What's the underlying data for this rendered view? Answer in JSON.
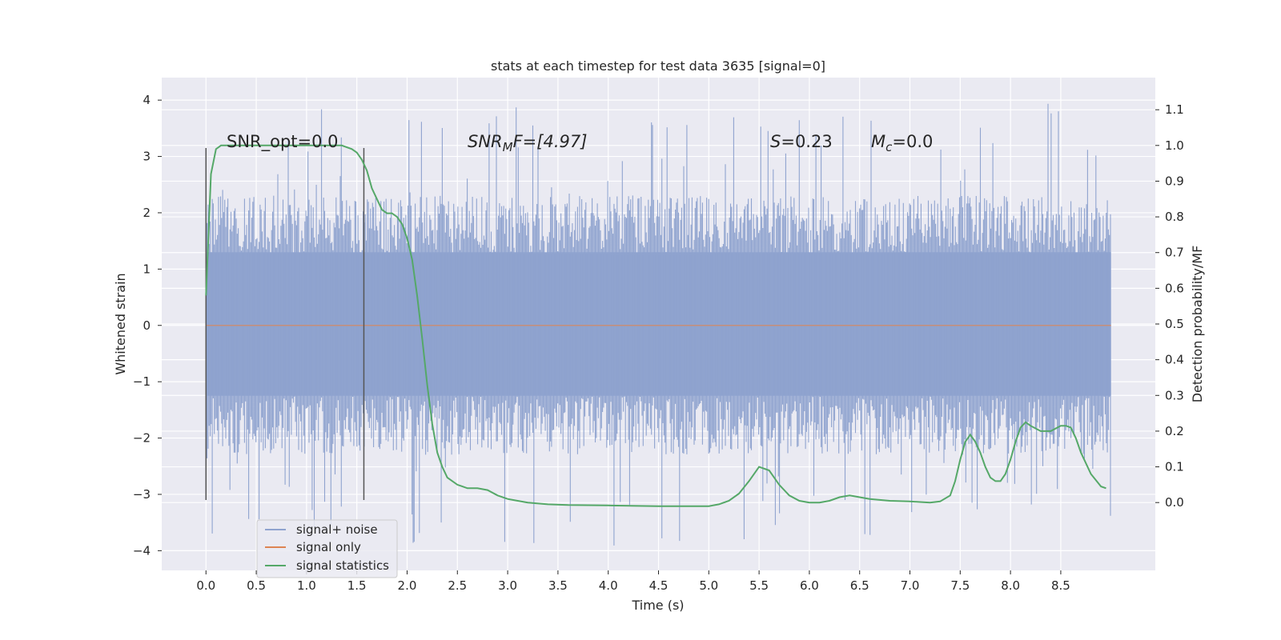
{
  "chart_data": {
    "type": "line",
    "title": "stats at each timestep for test data 3635 [signal=0]",
    "xlabel": "Time (s)",
    "ylabel": "Whitened strain",
    "y2label": "Detection probability/MF",
    "xlim": [
      -0.44,
      9.44
    ],
    "ylim": [
      -4.35,
      4.4
    ],
    "y2lim": [
      -0.19,
      1.19
    ],
    "x_ticks": [
      "0.0",
      "0.5",
      "1.0",
      "1.5",
      "2.0",
      "2.5",
      "3.0",
      "3.5",
      "4.0",
      "4.5",
      "5.0",
      "5.5",
      "6.0",
      "6.5",
      "7.0",
      "7.5",
      "8.0",
      "8.5"
    ],
    "x_tick_values": [
      0,
      0.5,
      1,
      1.5,
      2,
      2.5,
      3,
      3.5,
      4,
      4.5,
      5,
      5.5,
      6,
      6.5,
      7,
      7.5,
      8,
      8.5
    ],
    "y_ticks": [
      "−4",
      "−3",
      "−2",
      "−1",
      "0",
      "1",
      "2",
      "3",
      "4"
    ],
    "y_tick_values": [
      -4,
      -3,
      -2,
      -1,
      0,
      1,
      2,
      3,
      4
    ],
    "y2_ticks": [
      "0.0",
      "0.1",
      "0.2",
      "0.3",
      "0.4",
      "0.5",
      "0.6",
      "0.7",
      "0.8",
      "0.9",
      "1.0",
      "1.1"
    ],
    "y2_tick_values": [
      0,
      0.1,
      0.2,
      0.3,
      0.4,
      0.5,
      0.6,
      0.7,
      0.8,
      0.9,
      1.0,
      1.1
    ],
    "grid": true,
    "legend_position": "lower-left",
    "annotations": {
      "snr_opt": "SNR_opt=0.0",
      "snr_mf_prefix": "SNR",
      "snr_mf_sub": "M",
      "snr_mf_suffix": "F=[4.97]",
      "s_label": "S",
      "s_value": "=0.23",
      "mc_label": "M",
      "mc_sub": "c",
      "mc_value": "=0.0"
    },
    "vlines": [
      {
        "x": 0.0,
        "ymin": -3.1,
        "ymax": 3.15
      },
      {
        "x": 1.57,
        "ymin": -3.1,
        "ymax": 3.15
      }
    ],
    "series": [
      {
        "name": "signal+ noise",
        "color": "#8fa3cf",
        "axis": "left",
        "x_range": [
          0.0,
          9.0
        ],
        "band_core": [
          -1.25,
          1.3
        ],
        "band_typical": [
          -2.3,
          2.3
        ],
        "min": -3.95,
        "max": 4.02
      },
      {
        "name": "signal only",
        "color": "#dd8452",
        "axis": "left",
        "x": [
          0.0,
          9.0
        ],
        "y": [
          0.0,
          0.0
        ]
      },
      {
        "name": "signal statistics",
        "color": "#55a868",
        "axis": "right",
        "x": [
          0.0,
          0.05,
          0.1,
          0.15,
          0.2,
          0.3,
          0.5,
          0.8,
          1.0,
          1.2,
          1.35,
          1.45,
          1.5,
          1.55,
          1.6,
          1.65,
          1.7,
          1.75,
          1.8,
          1.85,
          1.9,
          1.95,
          2.0,
          2.05,
          2.1,
          2.15,
          2.2,
          2.25,
          2.3,
          2.35,
          2.4,
          2.45,
          2.5,
          2.55,
          2.6,
          2.7,
          2.8,
          2.9,
          3.0,
          3.1,
          3.2,
          3.4,
          3.6,
          4.0,
          4.5,
          5.0,
          5.1,
          5.2,
          5.3,
          5.4,
          5.5,
          5.6,
          5.7,
          5.8,
          5.9,
          6.0,
          6.1,
          6.2,
          6.3,
          6.4,
          6.5,
          6.6,
          6.8,
          7.0,
          7.2,
          7.3,
          7.4,
          7.45,
          7.5,
          7.55,
          7.6,
          7.65,
          7.7,
          7.75,
          7.8,
          7.85,
          7.9,
          7.95,
          8.0,
          8.05,
          8.1,
          8.15,
          8.2,
          8.3,
          8.4,
          8.5,
          8.55,
          8.6,
          8.65,
          8.7,
          8.8,
          8.9,
          8.95
        ],
        "y": [
          0.58,
          0.92,
          0.99,
          1.0,
          1.0,
          1.0,
          1.0,
          1.0,
          1.0,
          1.0,
          1.0,
          0.99,
          0.98,
          0.96,
          0.93,
          0.88,
          0.85,
          0.82,
          0.81,
          0.81,
          0.8,
          0.78,
          0.74,
          0.68,
          0.58,
          0.46,
          0.33,
          0.22,
          0.14,
          0.1,
          0.07,
          0.06,
          0.05,
          0.045,
          0.04,
          0.04,
          0.035,
          0.02,
          0.01,
          0.005,
          0.0,
          -0.005,
          -0.007,
          -0.008,
          -0.01,
          -0.01,
          -0.005,
          0.005,
          0.025,
          0.06,
          0.1,
          0.09,
          0.05,
          0.02,
          0.005,
          0.0,
          0.0,
          0.005,
          0.015,
          0.02,
          0.015,
          0.01,
          0.005,
          0.003,
          0.0,
          0.003,
          0.02,
          0.06,
          0.12,
          0.17,
          0.19,
          0.17,
          0.14,
          0.1,
          0.07,
          0.06,
          0.06,
          0.08,
          0.12,
          0.17,
          0.21,
          0.225,
          0.215,
          0.2,
          0.2,
          0.215,
          0.215,
          0.21,
          0.18,
          0.14,
          0.08,
          0.045,
          0.04
        ]
      }
    ]
  }
}
